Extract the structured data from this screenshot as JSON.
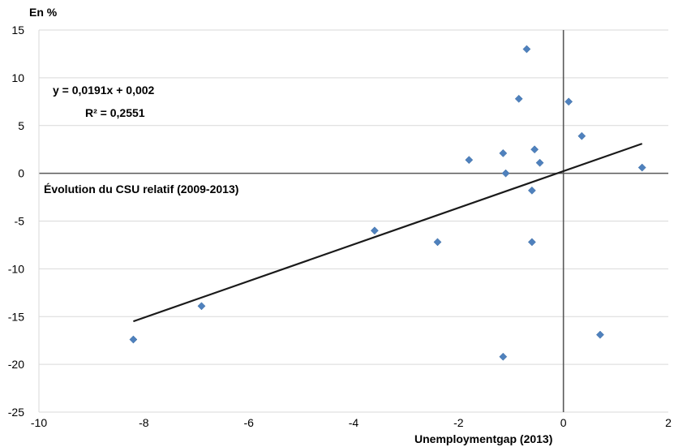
{
  "chart_data": {
    "type": "scatter",
    "title": "",
    "ylabel_unit": "En %",
    "xlabel": "Unemploymentgap (2013)",
    "ylabel": "Évolution du CSU relatif (2009-2013)",
    "xlim": [
      -10,
      2
    ],
    "ylim": [
      -25,
      15
    ],
    "xticks": [
      -10,
      -8,
      -6,
      -4,
      -2,
      0,
      2
    ],
    "yticks": [
      15,
      10,
      5,
      0,
      -5,
      -10,
      -15,
      -20,
      -25
    ],
    "grid": "horizontal",
    "marker_color": "#4f81bd",
    "trendline_color": "#1a1a1a",
    "equation": "y = 0,0191x + 0,002",
    "r_squared": "R² = 0,2551",
    "points": [
      {
        "x": -8.2,
        "y": -17.4
      },
      {
        "x": -6.9,
        "y": -13.9
      },
      {
        "x": -3.6,
        "y": -6.0
      },
      {
        "x": -2.4,
        "y": -7.2
      },
      {
        "x": -1.8,
        "y": 1.4
      },
      {
        "x": -1.15,
        "y": 2.1
      },
      {
        "x": -1.1,
        "y": 0.0
      },
      {
        "x": -1.15,
        "y": -19.2
      },
      {
        "x": -0.7,
        "y": 13.0
      },
      {
        "x": -0.85,
        "y": 7.8
      },
      {
        "x": -0.55,
        "y": 2.5
      },
      {
        "x": -0.45,
        "y": 1.1
      },
      {
        "x": -0.6,
        "y": -1.8
      },
      {
        "x": -0.6,
        "y": -7.2
      },
      {
        "x": 0.1,
        "y": 7.5
      },
      {
        "x": 0.35,
        "y": 3.9
      },
      {
        "x": 0.7,
        "y": -16.9
      },
      {
        "x": 1.5,
        "y": 0.6
      }
    ],
    "trendline": {
      "x": [
        -8.2,
        1.5
      ],
      "y": [
        -15.5,
        3.1
      ]
    }
  }
}
